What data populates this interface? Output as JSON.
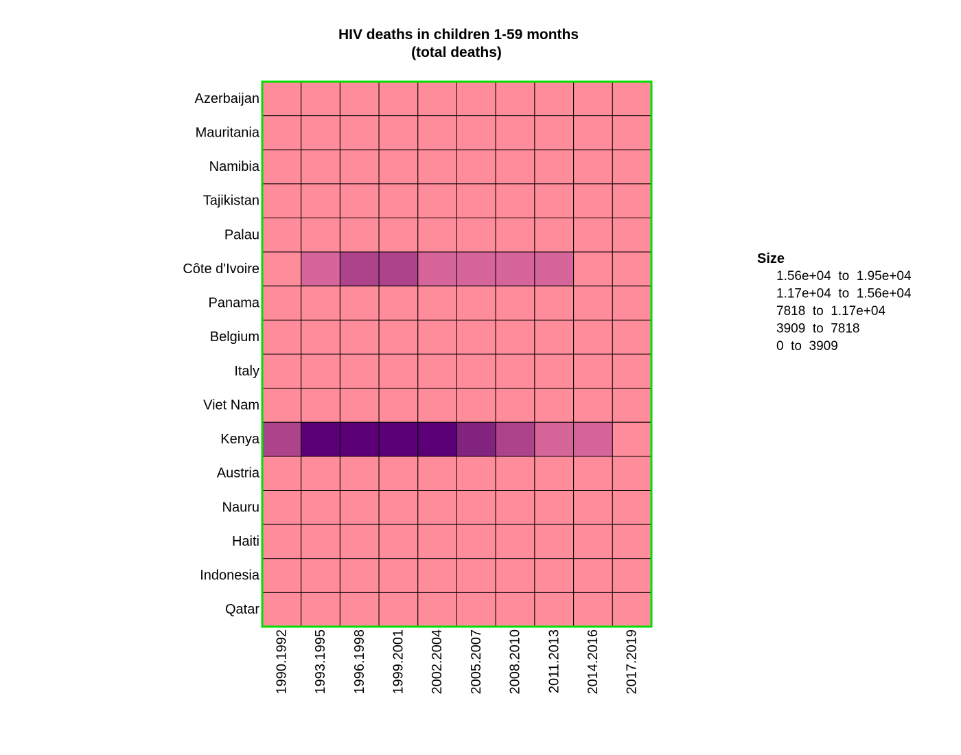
{
  "chart_data": {
    "type": "heatmap",
    "title": [
      "HIV deaths in children 1-59 months",
      "(total deaths)"
    ],
    "rows": [
      "Azerbaijan",
      "Mauritania",
      "Namibia",
      "Tajikistan",
      "Palau",
      "Côte d'Ivoire",
      "Panama",
      "Belgium",
      "Italy",
      "Viet Nam",
      "Kenya",
      "Austria",
      "Nauru",
      "Haiti",
      "Indonesia",
      "Qatar"
    ],
    "columns": [
      "1990.1992",
      "1993.1995",
      "1996.1998",
      "1999.2001",
      "2002.2004",
      "2005.2007",
      "2008.2010",
      "2011.2013",
      "2014.2016",
      "2017.2019"
    ],
    "bin_edges": [
      0,
      3909,
      7818,
      11700,
      15600,
      19500
    ],
    "bin_colors": [
      "#ff8c9a",
      "#d6659a",
      "#ad438a",
      "#82237f",
      "#5c0078"
    ],
    "bin_index": [
      [
        0,
        0,
        0,
        0,
        0,
        0,
        0,
        0,
        0,
        0
      ],
      [
        0,
        0,
        0,
        0,
        0,
        0,
        0,
        0,
        0,
        0
      ],
      [
        0,
        0,
        0,
        0,
        0,
        0,
        0,
        0,
        0,
        0
      ],
      [
        0,
        0,
        0,
        0,
        0,
        0,
        0,
        0,
        0,
        0
      ],
      [
        0,
        0,
        0,
        0,
        0,
        0,
        0,
        0,
        0,
        0
      ],
      [
        0,
        1,
        2,
        2,
        1,
        1,
        1,
        1,
        0,
        0
      ],
      [
        0,
        0,
        0,
        0,
        0,
        0,
        0,
        0,
        0,
        0
      ],
      [
        0,
        0,
        0,
        0,
        0,
        0,
        0,
        0,
        0,
        0
      ],
      [
        0,
        0,
        0,
        0,
        0,
        0,
        0,
        0,
        0,
        0
      ],
      [
        0,
        0,
        0,
        0,
        0,
        0,
        0,
        0,
        0,
        0
      ],
      [
        2,
        4,
        4,
        4,
        4,
        3,
        2,
        1,
        1,
        0
      ],
      [
        0,
        0,
        0,
        0,
        0,
        0,
        0,
        0,
        0,
        0
      ],
      [
        0,
        0,
        0,
        0,
        0,
        0,
        0,
        0,
        0,
        0
      ],
      [
        0,
        0,
        0,
        0,
        0,
        0,
        0,
        0,
        0,
        0
      ],
      [
        0,
        0,
        0,
        0,
        0,
        0,
        0,
        0,
        0,
        0
      ],
      [
        0,
        0,
        0,
        0,
        0,
        0,
        0,
        0,
        0,
        0
      ]
    ],
    "legend": {
      "title": "Size",
      "entries": [
        "1.56e+04  to  1.95e+04",
        "1.17e+04  to  1.56e+04",
        "7818  to  1.17e+04",
        "3909  to  7818",
        "0  to  3909"
      ],
      "placement": "right"
    },
    "border_color": "#00e000",
    "cell_line_color": "#000000"
  }
}
